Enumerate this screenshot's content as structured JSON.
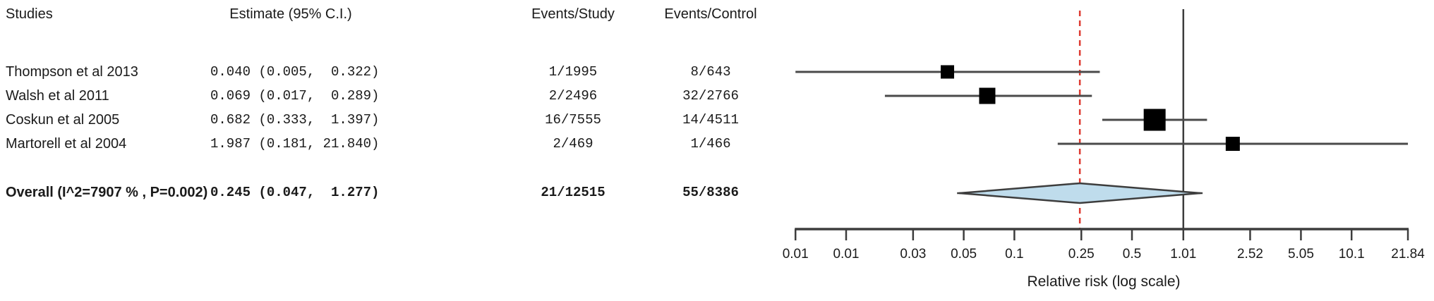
{
  "table": {
    "headers": {
      "studies": "Studies",
      "estimate": "Estimate (95% C.I.)",
      "events_study": "Events/Study",
      "events_control": "Events/Control"
    },
    "rows": [
      {
        "study": "Thompson et al 2013",
        "estimate": "0.040 (0.005,  0.322)",
        "events_study": "1/1995",
        "events_control": "8/643"
      },
      {
        "study": "Walsh et al 2011",
        "estimate": "0.069 (0.017,  0.289)",
        "events_study": "2/2496",
        "events_control": "32/2766"
      },
      {
        "study": "Coskun et al 2005",
        "estimate": "0.682 (0.333,  1.397)",
        "events_study": "16/7555",
        "events_control": "14/4511"
      },
      {
        "study": "Martorell et al 2004",
        "estimate": "1.987 (0.181, 21.840)",
        "events_study": "2/469",
        "events_control": "1/466"
      }
    ],
    "overall_row": {
      "study": "Overall (I^2=7907 % , P=0.002)",
      "estimate": "0.245 (0.047,  1.277)",
      "events_study": "21/12515",
      "events_control": "55/8386"
    }
  },
  "chart_data": {
    "type": "forest",
    "xlabel": "Relative risk (log scale)",
    "scale": "log10",
    "xlim": [
      0.005,
      21.84
    ],
    "grid": false,
    "null_line_value": 1.01,
    "overall_reference_line_value": 0.245,
    "axis_ticks": [
      {
        "value": 0.005,
        "label": "0.01"
      },
      {
        "value": 0.01,
        "label": "0.01"
      },
      {
        "value": 0.025,
        "label": "0.03"
      },
      {
        "value": 0.05,
        "label": "0.05"
      },
      {
        "value": 0.1,
        "label": "0.1"
      },
      {
        "value": 0.25,
        "label": "0.25"
      },
      {
        "value": 0.5,
        "label": "0.5"
      },
      {
        "value": 1.01,
        "label": "1.01"
      },
      {
        "value": 2.52,
        "label": "2.52"
      },
      {
        "value": 5.05,
        "label": "5.05"
      },
      {
        "value": 10.1,
        "label": "10.1"
      },
      {
        "value": 21.84,
        "label": "21.84"
      }
    ],
    "studies": [
      {
        "name": "Thompson et al 2013",
        "estimate": 0.04,
        "ci_low": 0.005,
        "ci_high": 0.322,
        "marker_size": 19
      },
      {
        "name": "Walsh et al 2011",
        "estimate": 0.069,
        "ci_low": 0.017,
        "ci_high": 0.289,
        "marker_size": 23
      },
      {
        "name": "Coskun et al 2005",
        "estimate": 0.682,
        "ci_low": 0.333,
        "ci_high": 1.397,
        "marker_size": 31
      },
      {
        "name": "Martorell et al 2004",
        "estimate": 1.987,
        "ci_low": 0.181,
        "ci_high": 21.84,
        "marker_size": 20
      }
    ],
    "overall": {
      "estimate": 0.245,
      "ci_low": 0.047,
      "ci_high": 1.277
    }
  },
  "colors": {
    "text": "#1a1a1a",
    "ci_line": "#4a4a4a",
    "marker": "#000000",
    "axis": "#3d3d3d",
    "null_line": "#3d3d3d",
    "overall_line": "#dd3a30",
    "diamond_fill": "#bfdcec",
    "diamond_stroke": "#3d3d3d"
  }
}
